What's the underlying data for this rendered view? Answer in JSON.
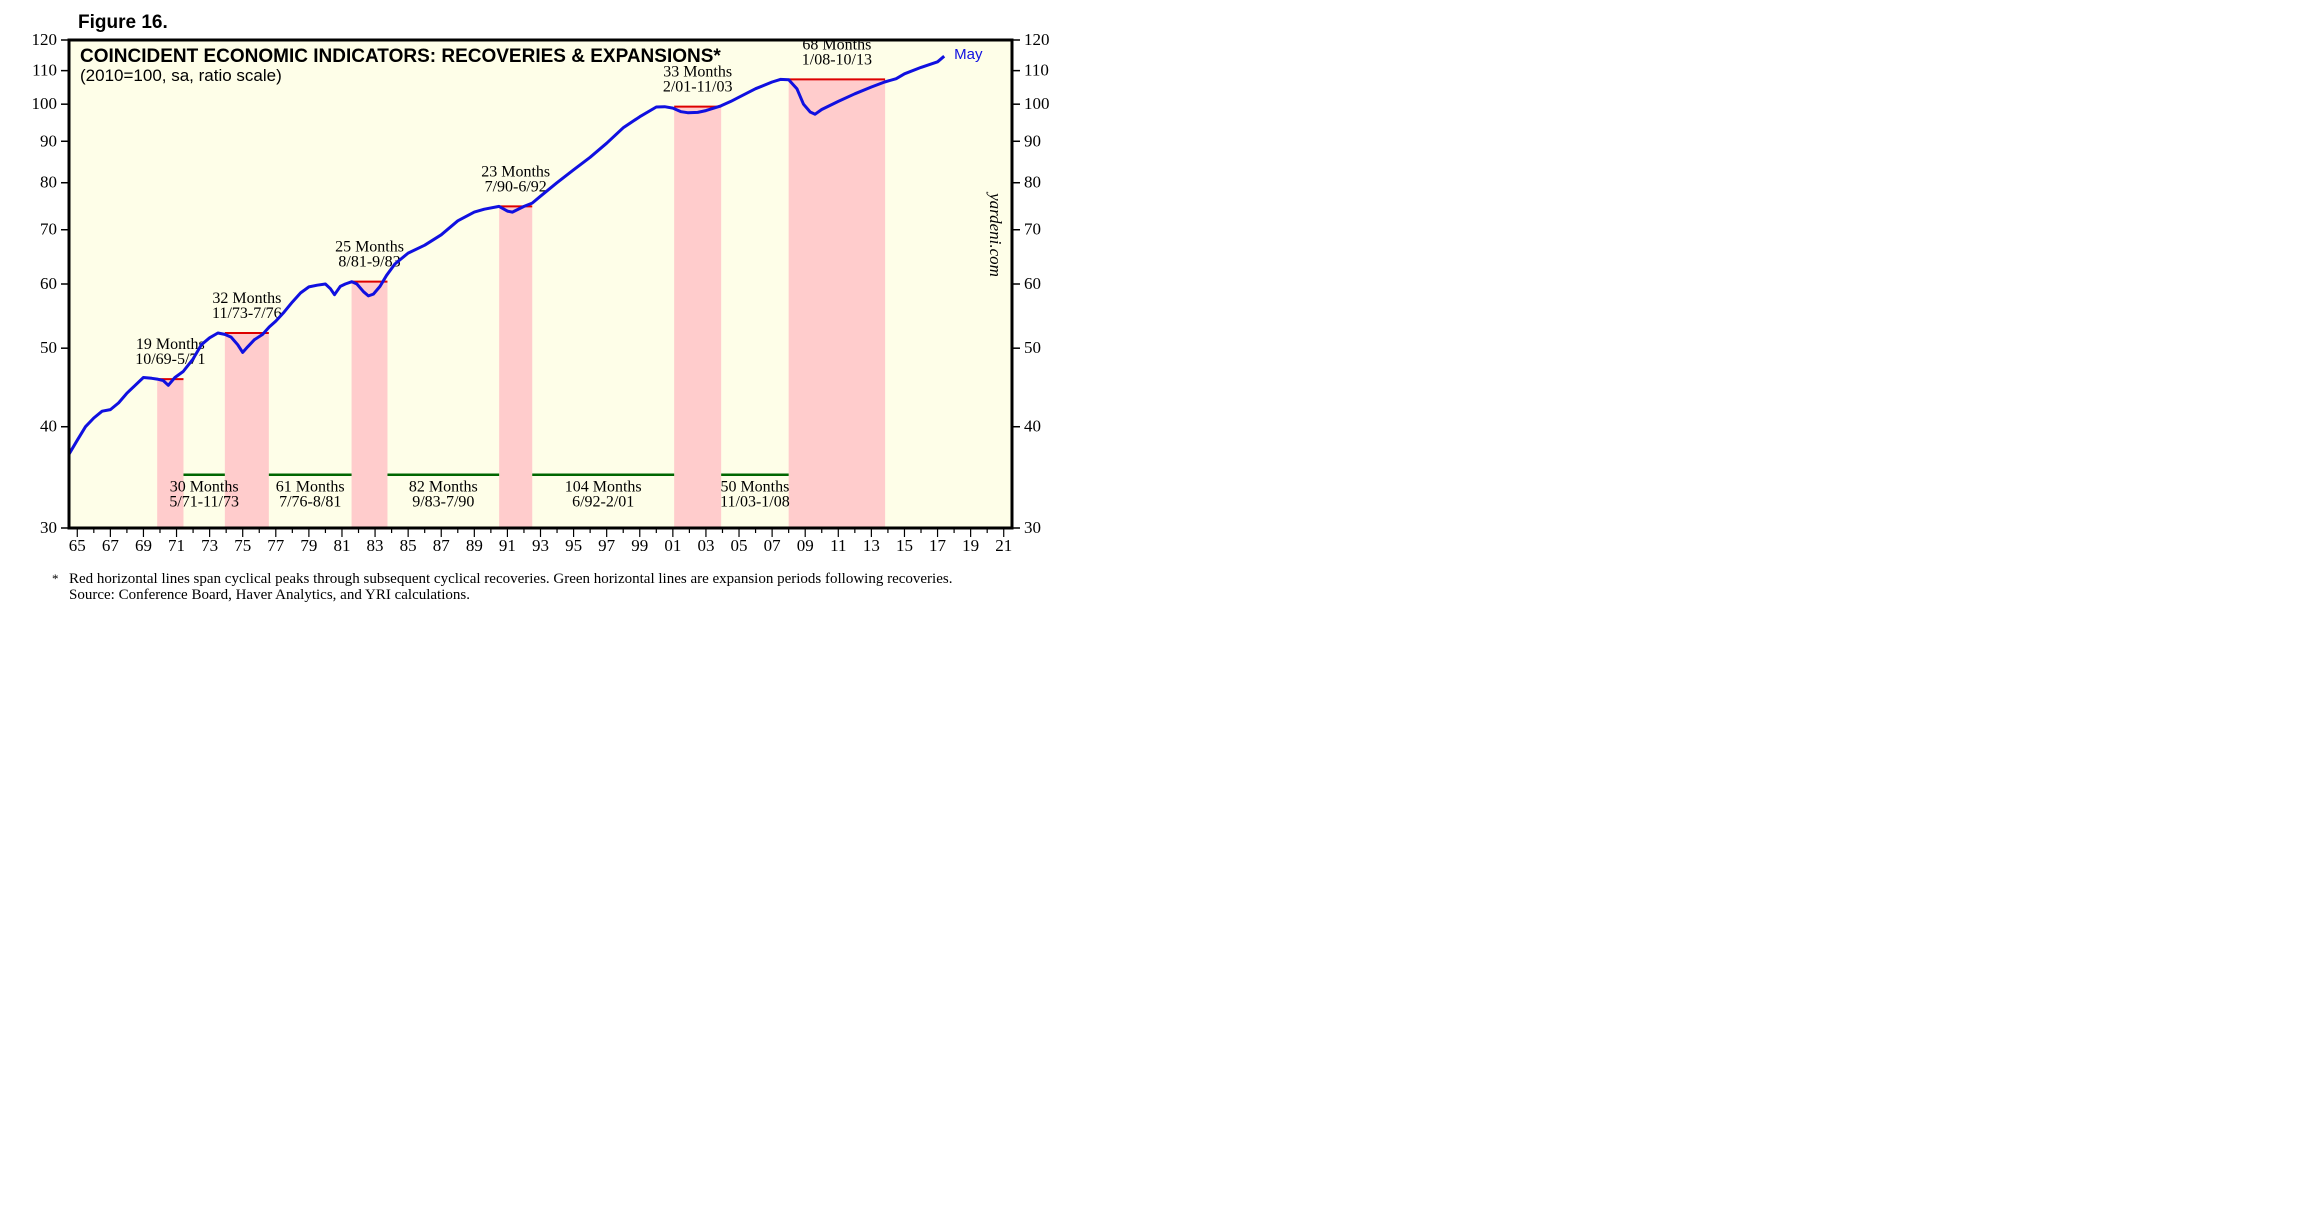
{
  "figure_label": "Figure 16.",
  "chart_data": {
    "type": "line",
    "title": "COINCIDENT ECONOMIC INDICATORS: RECOVERIES & EXPANSIONS*",
    "subtitle": "(2010=100, sa, ratio scale)",
    "y_scale": "log",
    "ylim": [
      30,
      120
    ],
    "xlim": [
      1964.5,
      2021.5
    ],
    "y_ticks": [
      30,
      40,
      50,
      60,
      70,
      80,
      90,
      100,
      110,
      120
    ],
    "x_tick_labels": [
      "65",
      "67",
      "69",
      "71",
      "73",
      "75",
      "77",
      "79",
      "81",
      "83",
      "85",
      "87",
      "89",
      "91",
      "93",
      "95",
      "97",
      "99",
      "01",
      "03",
      "05",
      "07",
      "09",
      "11",
      "13",
      "15",
      "17",
      "19",
      "21"
    ],
    "grid": false,
    "background_color": "#fefee8",
    "line_color": "#1010e0",
    "recovery_color": "#ffcccc",
    "peak_line_color": "#dd0000",
    "expansion_line_color": "#006600",
    "series": [
      {
        "end_label": "May",
        "x": [
          1964.5,
          1965,
          1965.5,
          1966,
          1966.5,
          1967,
          1967.5,
          1968,
          1968.5,
          1969,
          1969.5,
          1969.83,
          1970.2,
          1970.5,
          1970.9,
          1971.4,
          1972,
          1972.5,
          1973,
          1973.5,
          1973.92,
          1974.3,
          1974.7,
          1975.0,
          1975.3,
          1975.7,
          1976.2,
          1976.6,
          1977,
          1977.5,
          1978,
          1978.5,
          1979,
          1979.5,
          1980.0,
          1980.3,
          1980.55,
          1980.9,
          1981.2,
          1981.6,
          1981.9,
          1982.3,
          1982.6,
          1982.9,
          1983.3,
          1983.7,
          1984.2,
          1985,
          1986,
          1987,
          1988,
          1989,
          1989.6,
          1990.5,
          1991.0,
          1991.3,
          1992.0,
          1992.5,
          1993,
          1994,
          1995,
          1996,
          1997,
          1998,
          1999,
          2000,
          2000.5,
          2001.0,
          2001.5,
          2001.9,
          2002.5,
          2003,
          2003.9,
          2004.5,
          2005,
          2006,
          2007,
          2007.5,
          2008.0,
          2008.5,
          2008.9,
          2009.3,
          2009.6,
          2010,
          2011,
          2012,
          2013,
          2013.8,
          2014.5,
          2015,
          2016,
          2017,
          2017.4
        ],
        "y": [
          37.0,
          38.5,
          40,
          41,
          41.8,
          42,
          42.8,
          44,
          45,
          46,
          45.9,
          45.8,
          45.6,
          45,
          46,
          46.8,
          48.5,
          50.5,
          51.5,
          52.2,
          52.0,
          51.6,
          50.5,
          49.4,
          50.2,
          51.2,
          52.0,
          53.1,
          54,
          55.4,
          57,
          58.5,
          59.5,
          59.8,
          60.0,
          59.2,
          58.2,
          59.6,
          60.0,
          60.4,
          60.0,
          58.7,
          58.0,
          58.3,
          59.6,
          61.5,
          63.5,
          65.5,
          67,
          69,
          71.8,
          73.6,
          74.2,
          74.8,
          73.8,
          73.6,
          74.8,
          75.5,
          77,
          80,
          83,
          86,
          89.5,
          93.5,
          96.5,
          99.2,
          99.3,
          98.9,
          97.9,
          97.6,
          97.7,
          98.2,
          99.5,
          100.8,
          102,
          104.5,
          106.5,
          107.3,
          107.2,
          104.5,
          100,
          97.8,
          97.2,
          98.5,
          100.8,
          103,
          105,
          106.5,
          107.5,
          109,
          111,
          112.8,
          114.6
        ]
      }
    ],
    "recoveries": [
      {
        "start": 1969.83,
        "end": 1971.42,
        "peak": 45.8,
        "label_line1": "19 Months",
        "label_line2": "10/69-5/71"
      },
      {
        "start": 1973.92,
        "end": 1976.58,
        "peak": 52.2,
        "label_line1": "32 Months",
        "label_line2": "11/73-7/76"
      },
      {
        "start": 1981.58,
        "end": 1983.75,
        "peak": 60.4,
        "label_line1": "25 Months",
        "label_line2": "8/81-9/83"
      },
      {
        "start": 1990.5,
        "end": 1992.5,
        "peak": 74.8,
        "label_line1": "23 Months",
        "label_line2": "7/90-6/92"
      },
      {
        "start": 2001.08,
        "end": 2003.92,
        "peak": 99.3,
        "label_line1": "33 Months",
        "label_line2": "2/01-11/03"
      },
      {
        "start": 2008.0,
        "end": 2013.83,
        "peak": 107.3,
        "label_line1": "68 Months",
        "label_line2": "1/08-10/13"
      }
    ],
    "expansions": [
      {
        "start": 1971.42,
        "end": 1973.92,
        "label_line1": "30 Months",
        "label_line2": "5/71-11/73"
      },
      {
        "start": 1976.58,
        "end": 1981.58,
        "label_line1": "61 Months",
        "label_line2": "7/76-8/81"
      },
      {
        "start": 1983.75,
        "end": 1990.5,
        "label_line1": "82 Months",
        "label_line2": "9/83-7/90"
      },
      {
        "start": 1992.5,
        "end": 2001.08,
        "label_line1": "104 Months",
        "label_line2": "6/92-2/01"
      },
      {
        "start": 2003.92,
        "end": 2008.0,
        "label_line1": "50 Months",
        "label_line2": "11/03-1/08"
      }
    ],
    "watermark": "yardeni.com"
  },
  "footnote": {
    "marker": "*",
    "line1": "Red horizontal lines span cyclical peaks through subsequent cyclical recoveries. Green horizontal lines are expansion periods following recoveries.",
    "line2": "Source: Conference Board, Haver Analytics, and YRI calculations."
  }
}
